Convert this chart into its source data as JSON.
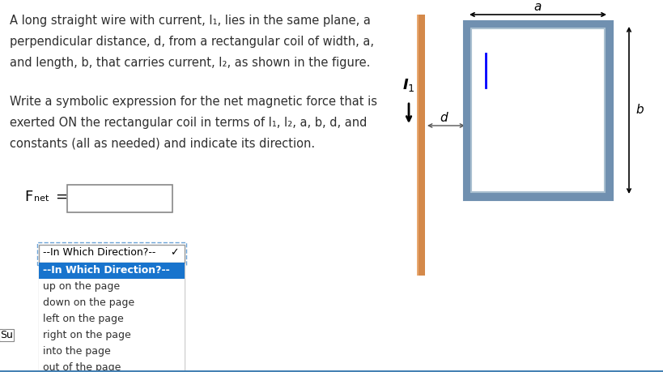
{
  "bg_color": "#ffffff",
  "text_color": "#2F2F2F",
  "brown_text": "#8B4513",
  "blue_color": "#1874CD",
  "orange_wire_color": "#D2813A",
  "rect_border_outer": "#7090B0",
  "rect_border_inner": "#9DB0C0",
  "dropdown_bg": "#ffffff",
  "dropdown_selected_bg": "#1874CD",
  "dropdown_selected_fg": "#ffffff",
  "dropdown_border": "#1874CD",
  "dropdown_header_border": "#A0A0A0",
  "bottom_line_color": "#4682B4",
  "paragraph1_lines": [
    "A long straight wire with current, I₁, lies in the same plane, a",
    "perpendicular distance, d, from a rectangular coil of width, a,",
    "and length, b, that carries current, I₂, as shown in the figure."
  ],
  "paragraph2_lines": [
    "Write a symbolic expression for the net magnetic force that is",
    "exerted ON the rectangular coil in terms of I₁, I₂, a, b, d, and",
    "constants (all as needed) and indicate its direction."
  ],
  "dropdown_options": [
    "--In Which Direction?--",
    "up on the page",
    "down on the page",
    "left on the page",
    "right on the page",
    "into the page",
    "out of the page"
  ],
  "note_text": "Su"
}
